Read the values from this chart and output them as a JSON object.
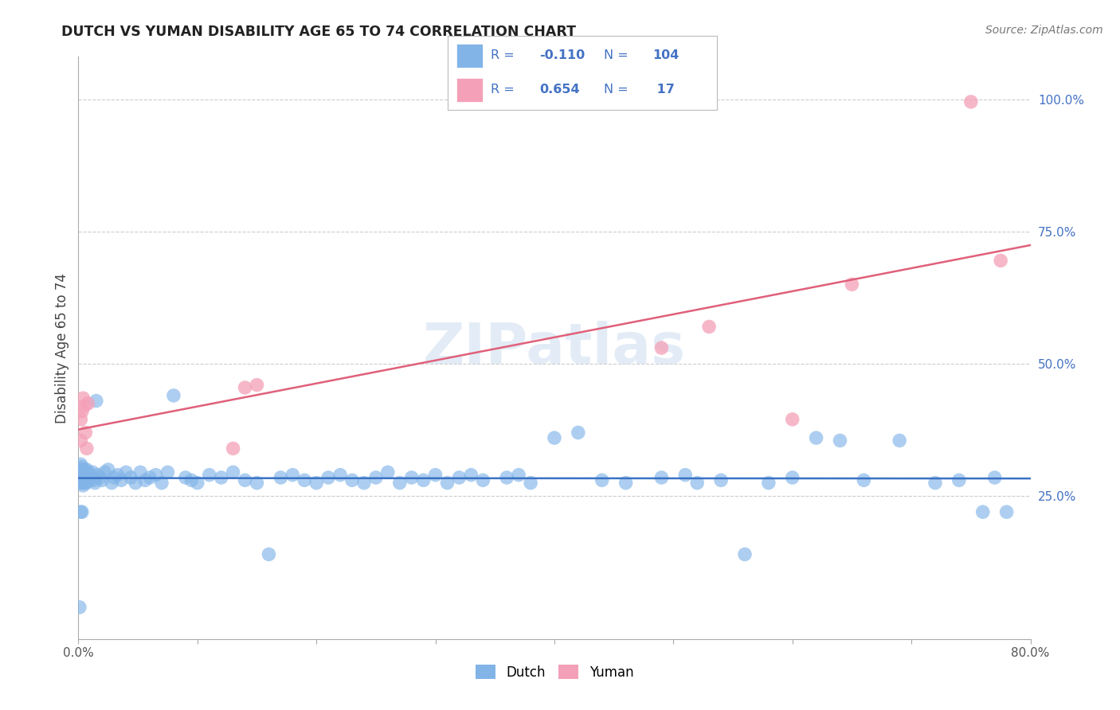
{
  "title": "DUTCH VS YUMAN DISABILITY AGE 65 TO 74 CORRELATION CHART",
  "source": "Source: ZipAtlas.com",
  "ylabel": "Disability Age 65 to 74",
  "xlim": [
    0.0,
    0.8
  ],
  "ylim": [
    -0.02,
    1.08
  ],
  "xticks": [
    0.0,
    0.1,
    0.2,
    0.3,
    0.4,
    0.5,
    0.6,
    0.7,
    0.8
  ],
  "xticklabels": [
    "0.0%",
    "",
    "",
    "",
    "",
    "",
    "",
    "",
    "80.0%"
  ],
  "yticks_right": [
    0.25,
    0.5,
    0.75,
    1.0
  ],
  "yticklabels_right": [
    "25.0%",
    "50.0%",
    "75.0%",
    "100.0%"
  ],
  "dutch_color": "#82b4e8",
  "yuman_color": "#f4a0b8",
  "dutch_line_color": "#3a72c4",
  "yuman_line_color": "#e0607a",
  "legend_color": "#4472c4",
  "legend_dutch_R": "-0.110",
  "legend_dutch_N": "104",
  "legend_yuman_R": "0.654",
  "legend_yuman_N": "17",
  "watermark": "ZIPatlas",
  "dutch_x": [
    0.001,
    0.001,
    0.001,
    0.002,
    0.002,
    0.002,
    0.002,
    0.003,
    0.003,
    0.003,
    0.003,
    0.003,
    0.004,
    0.004,
    0.004,
    0.005,
    0.005,
    0.005,
    0.006,
    0.006,
    0.007,
    0.007,
    0.008,
    0.008,
    0.009,
    0.01,
    0.011,
    0.012,
    0.013,
    0.014,
    0.015,
    0.016,
    0.018,
    0.02,
    0.022,
    0.025,
    0.028,
    0.03,
    0.033,
    0.036,
    0.04,
    0.044,
    0.048,
    0.052,
    0.056,
    0.06,
    0.065,
    0.07,
    0.075,
    0.08,
    0.09,
    0.095,
    0.1,
    0.11,
    0.12,
    0.13,
    0.14,
    0.15,
    0.16,
    0.17,
    0.18,
    0.19,
    0.2,
    0.21,
    0.22,
    0.23,
    0.24,
    0.25,
    0.26,
    0.27,
    0.28,
    0.29,
    0.3,
    0.31,
    0.32,
    0.33,
    0.34,
    0.36,
    0.37,
    0.38,
    0.4,
    0.42,
    0.44,
    0.46,
    0.49,
    0.51,
    0.52,
    0.54,
    0.56,
    0.58,
    0.6,
    0.62,
    0.64,
    0.66,
    0.69,
    0.72,
    0.74,
    0.76,
    0.77,
    0.78,
    0.001,
    0.002,
    0.003,
    0.004
  ],
  "dutch_y": [
    0.29,
    0.3,
    0.285,
    0.295,
    0.275,
    0.31,
    0.28,
    0.285,
    0.3,
    0.275,
    0.29,
    0.305,
    0.28,
    0.295,
    0.27,
    0.285,
    0.3,
    0.275,
    0.29,
    0.285,
    0.3,
    0.275,
    0.285,
    0.295,
    0.28,
    0.29,
    0.285,
    0.295,
    0.28,
    0.275,
    0.43,
    0.29,
    0.285,
    0.28,
    0.295,
    0.3,
    0.275,
    0.285,
    0.29,
    0.28,
    0.295,
    0.285,
    0.275,
    0.295,
    0.28,
    0.285,
    0.29,
    0.275,
    0.295,
    0.44,
    0.285,
    0.28,
    0.275,
    0.29,
    0.285,
    0.295,
    0.28,
    0.275,
    0.14,
    0.285,
    0.29,
    0.28,
    0.275,
    0.285,
    0.29,
    0.28,
    0.275,
    0.285,
    0.295,
    0.275,
    0.285,
    0.28,
    0.29,
    0.275,
    0.285,
    0.29,
    0.28,
    0.285,
    0.29,
    0.275,
    0.36,
    0.37,
    0.28,
    0.275,
    0.285,
    0.29,
    0.275,
    0.28,
    0.14,
    0.275,
    0.285,
    0.36,
    0.355,
    0.28,
    0.355,
    0.275,
    0.28,
    0.22,
    0.285,
    0.22,
    0.04,
    0.22,
    0.22,
    0.285
  ],
  "yuman_x": [
    0.002,
    0.002,
    0.003,
    0.004,
    0.005,
    0.006,
    0.007,
    0.008,
    0.13,
    0.14,
    0.15,
    0.49,
    0.53,
    0.6,
    0.65,
    0.75,
    0.775
  ],
  "yuman_y": [
    0.395,
    0.355,
    0.41,
    0.435,
    0.42,
    0.37,
    0.34,
    0.425,
    0.34,
    0.455,
    0.46,
    0.53,
    0.57,
    0.395,
    0.65,
    0.995,
    0.695
  ]
}
